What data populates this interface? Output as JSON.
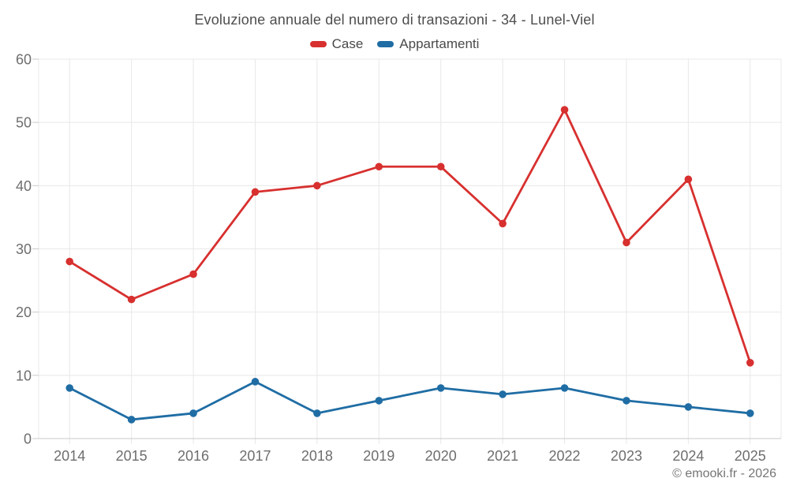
{
  "title": "Evoluzione annuale del numero di transazioni - 34 - Lunel-Viel",
  "footer": {
    "copyright": "© emooki.fr - 2026"
  },
  "chart_data": {
    "type": "line",
    "title": "Evoluzione annuale del numero di transazioni - 34 - Lunel-Viel",
    "categories": [
      "2014",
      "2015",
      "2016",
      "2017",
      "2018",
      "2019",
      "2020",
      "2021",
      "2022",
      "2023",
      "2024",
      "2025"
    ],
    "series": [
      {
        "name": "Case",
        "color": "#d7302f",
        "values": [
          28,
          22,
          26,
          39,
          40,
          43,
          43,
          34,
          52,
          31,
          41,
          12
        ]
      },
      {
        "name": "Appartamenti",
        "color": "#1f6da4",
        "values": [
          8,
          3,
          4,
          9,
          4,
          6,
          8,
          7,
          8,
          6,
          5,
          4
        ]
      }
    ],
    "xlabel": "",
    "ylabel": "",
    "ylim": [
      0,
      60
    ],
    "ytick_step": 10,
    "yticks": [
      "0",
      "10",
      "20",
      "30",
      "40",
      "50",
      "60"
    ],
    "grid": true,
    "legend_position": "top",
    "marker": "circle",
    "style": {
      "grid": "#e8e8e8",
      "axis": "#c9c9c9",
      "tick_label": "#6e6e6e",
      "title_color": "#4d4d4d",
      "copyright_color": "#757575"
    }
  }
}
